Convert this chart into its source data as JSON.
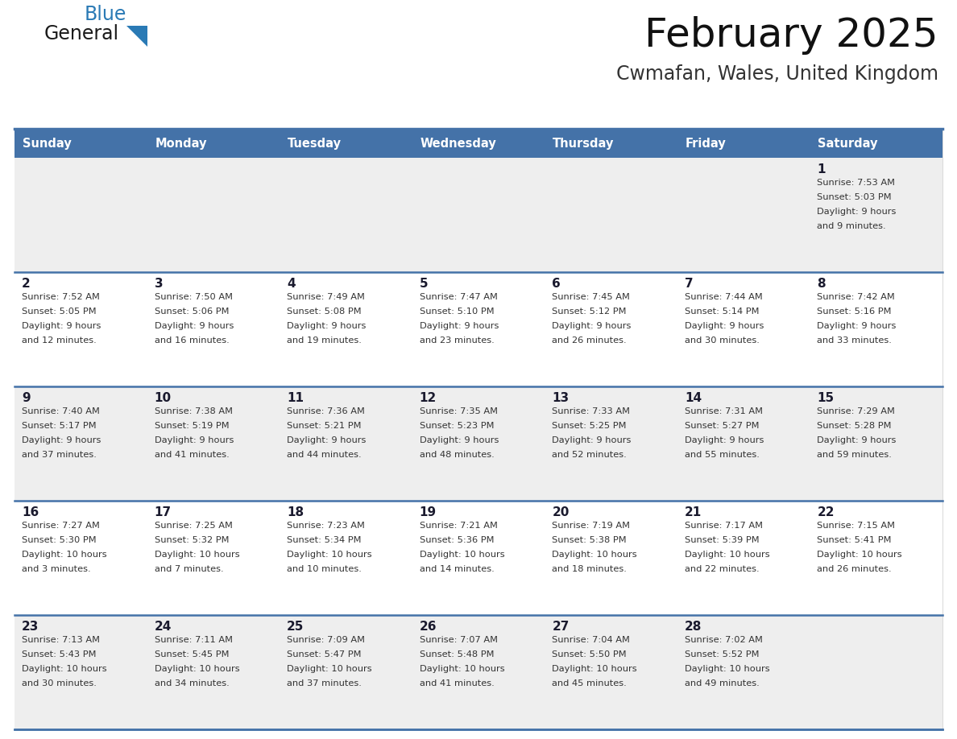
{
  "title": "February 2025",
  "subtitle": "Cwmafan, Wales, United Kingdom",
  "header_color": "#4472a8",
  "header_text_color": "#ffffff",
  "cell_bg_week1": "#eeeeee",
  "cell_bg_week2": "#ffffff",
  "cell_bg_week3": "#eeeeee",
  "cell_bg_week4": "#ffffff",
  "cell_bg_week5": "#eeeeee",
  "day_num_color": "#1a1a2e",
  "info_text_color": "#333333",
  "border_color": "#4472a8",
  "logo_general_color": "#1a1a1a",
  "logo_blue_color": "#2a7ab5",
  "logo_triangle_color": "#2a7ab5",
  "days_of_week": [
    "Sunday",
    "Monday",
    "Tuesday",
    "Wednesday",
    "Thursday",
    "Friday",
    "Saturday"
  ],
  "weeks": [
    [
      {
        "day": "",
        "info": ""
      },
      {
        "day": "",
        "info": ""
      },
      {
        "day": "",
        "info": ""
      },
      {
        "day": "",
        "info": ""
      },
      {
        "day": "",
        "info": ""
      },
      {
        "day": "",
        "info": ""
      },
      {
        "day": "1",
        "info": "Sunrise: 7:53 AM\nSunset: 5:03 PM\nDaylight: 9 hours\nand 9 minutes."
      }
    ],
    [
      {
        "day": "2",
        "info": "Sunrise: 7:52 AM\nSunset: 5:05 PM\nDaylight: 9 hours\nand 12 minutes."
      },
      {
        "day": "3",
        "info": "Sunrise: 7:50 AM\nSunset: 5:06 PM\nDaylight: 9 hours\nand 16 minutes."
      },
      {
        "day": "4",
        "info": "Sunrise: 7:49 AM\nSunset: 5:08 PM\nDaylight: 9 hours\nand 19 minutes."
      },
      {
        "day": "5",
        "info": "Sunrise: 7:47 AM\nSunset: 5:10 PM\nDaylight: 9 hours\nand 23 minutes."
      },
      {
        "day": "6",
        "info": "Sunrise: 7:45 AM\nSunset: 5:12 PM\nDaylight: 9 hours\nand 26 minutes."
      },
      {
        "day": "7",
        "info": "Sunrise: 7:44 AM\nSunset: 5:14 PM\nDaylight: 9 hours\nand 30 minutes."
      },
      {
        "day": "8",
        "info": "Sunrise: 7:42 AM\nSunset: 5:16 PM\nDaylight: 9 hours\nand 33 minutes."
      }
    ],
    [
      {
        "day": "9",
        "info": "Sunrise: 7:40 AM\nSunset: 5:17 PM\nDaylight: 9 hours\nand 37 minutes."
      },
      {
        "day": "10",
        "info": "Sunrise: 7:38 AM\nSunset: 5:19 PM\nDaylight: 9 hours\nand 41 minutes."
      },
      {
        "day": "11",
        "info": "Sunrise: 7:36 AM\nSunset: 5:21 PM\nDaylight: 9 hours\nand 44 minutes."
      },
      {
        "day": "12",
        "info": "Sunrise: 7:35 AM\nSunset: 5:23 PM\nDaylight: 9 hours\nand 48 minutes."
      },
      {
        "day": "13",
        "info": "Sunrise: 7:33 AM\nSunset: 5:25 PM\nDaylight: 9 hours\nand 52 minutes."
      },
      {
        "day": "14",
        "info": "Sunrise: 7:31 AM\nSunset: 5:27 PM\nDaylight: 9 hours\nand 55 minutes."
      },
      {
        "day": "15",
        "info": "Sunrise: 7:29 AM\nSunset: 5:28 PM\nDaylight: 9 hours\nand 59 minutes."
      }
    ],
    [
      {
        "day": "16",
        "info": "Sunrise: 7:27 AM\nSunset: 5:30 PM\nDaylight: 10 hours\nand 3 minutes."
      },
      {
        "day": "17",
        "info": "Sunrise: 7:25 AM\nSunset: 5:32 PM\nDaylight: 10 hours\nand 7 minutes."
      },
      {
        "day": "18",
        "info": "Sunrise: 7:23 AM\nSunset: 5:34 PM\nDaylight: 10 hours\nand 10 minutes."
      },
      {
        "day": "19",
        "info": "Sunrise: 7:21 AM\nSunset: 5:36 PM\nDaylight: 10 hours\nand 14 minutes."
      },
      {
        "day": "20",
        "info": "Sunrise: 7:19 AM\nSunset: 5:38 PM\nDaylight: 10 hours\nand 18 minutes."
      },
      {
        "day": "21",
        "info": "Sunrise: 7:17 AM\nSunset: 5:39 PM\nDaylight: 10 hours\nand 22 minutes."
      },
      {
        "day": "22",
        "info": "Sunrise: 7:15 AM\nSunset: 5:41 PM\nDaylight: 10 hours\nand 26 minutes."
      }
    ],
    [
      {
        "day": "23",
        "info": "Sunrise: 7:13 AM\nSunset: 5:43 PM\nDaylight: 10 hours\nand 30 minutes."
      },
      {
        "day": "24",
        "info": "Sunrise: 7:11 AM\nSunset: 5:45 PM\nDaylight: 10 hours\nand 34 minutes."
      },
      {
        "day": "25",
        "info": "Sunrise: 7:09 AM\nSunset: 5:47 PM\nDaylight: 10 hours\nand 37 minutes."
      },
      {
        "day": "26",
        "info": "Sunrise: 7:07 AM\nSunset: 5:48 PM\nDaylight: 10 hours\nand 41 minutes."
      },
      {
        "day": "27",
        "info": "Sunrise: 7:04 AM\nSunset: 5:50 PM\nDaylight: 10 hours\nand 45 minutes."
      },
      {
        "day": "28",
        "info": "Sunrise: 7:02 AM\nSunset: 5:52 PM\nDaylight: 10 hours\nand 49 minutes."
      },
      {
        "day": "",
        "info": ""
      }
    ]
  ]
}
